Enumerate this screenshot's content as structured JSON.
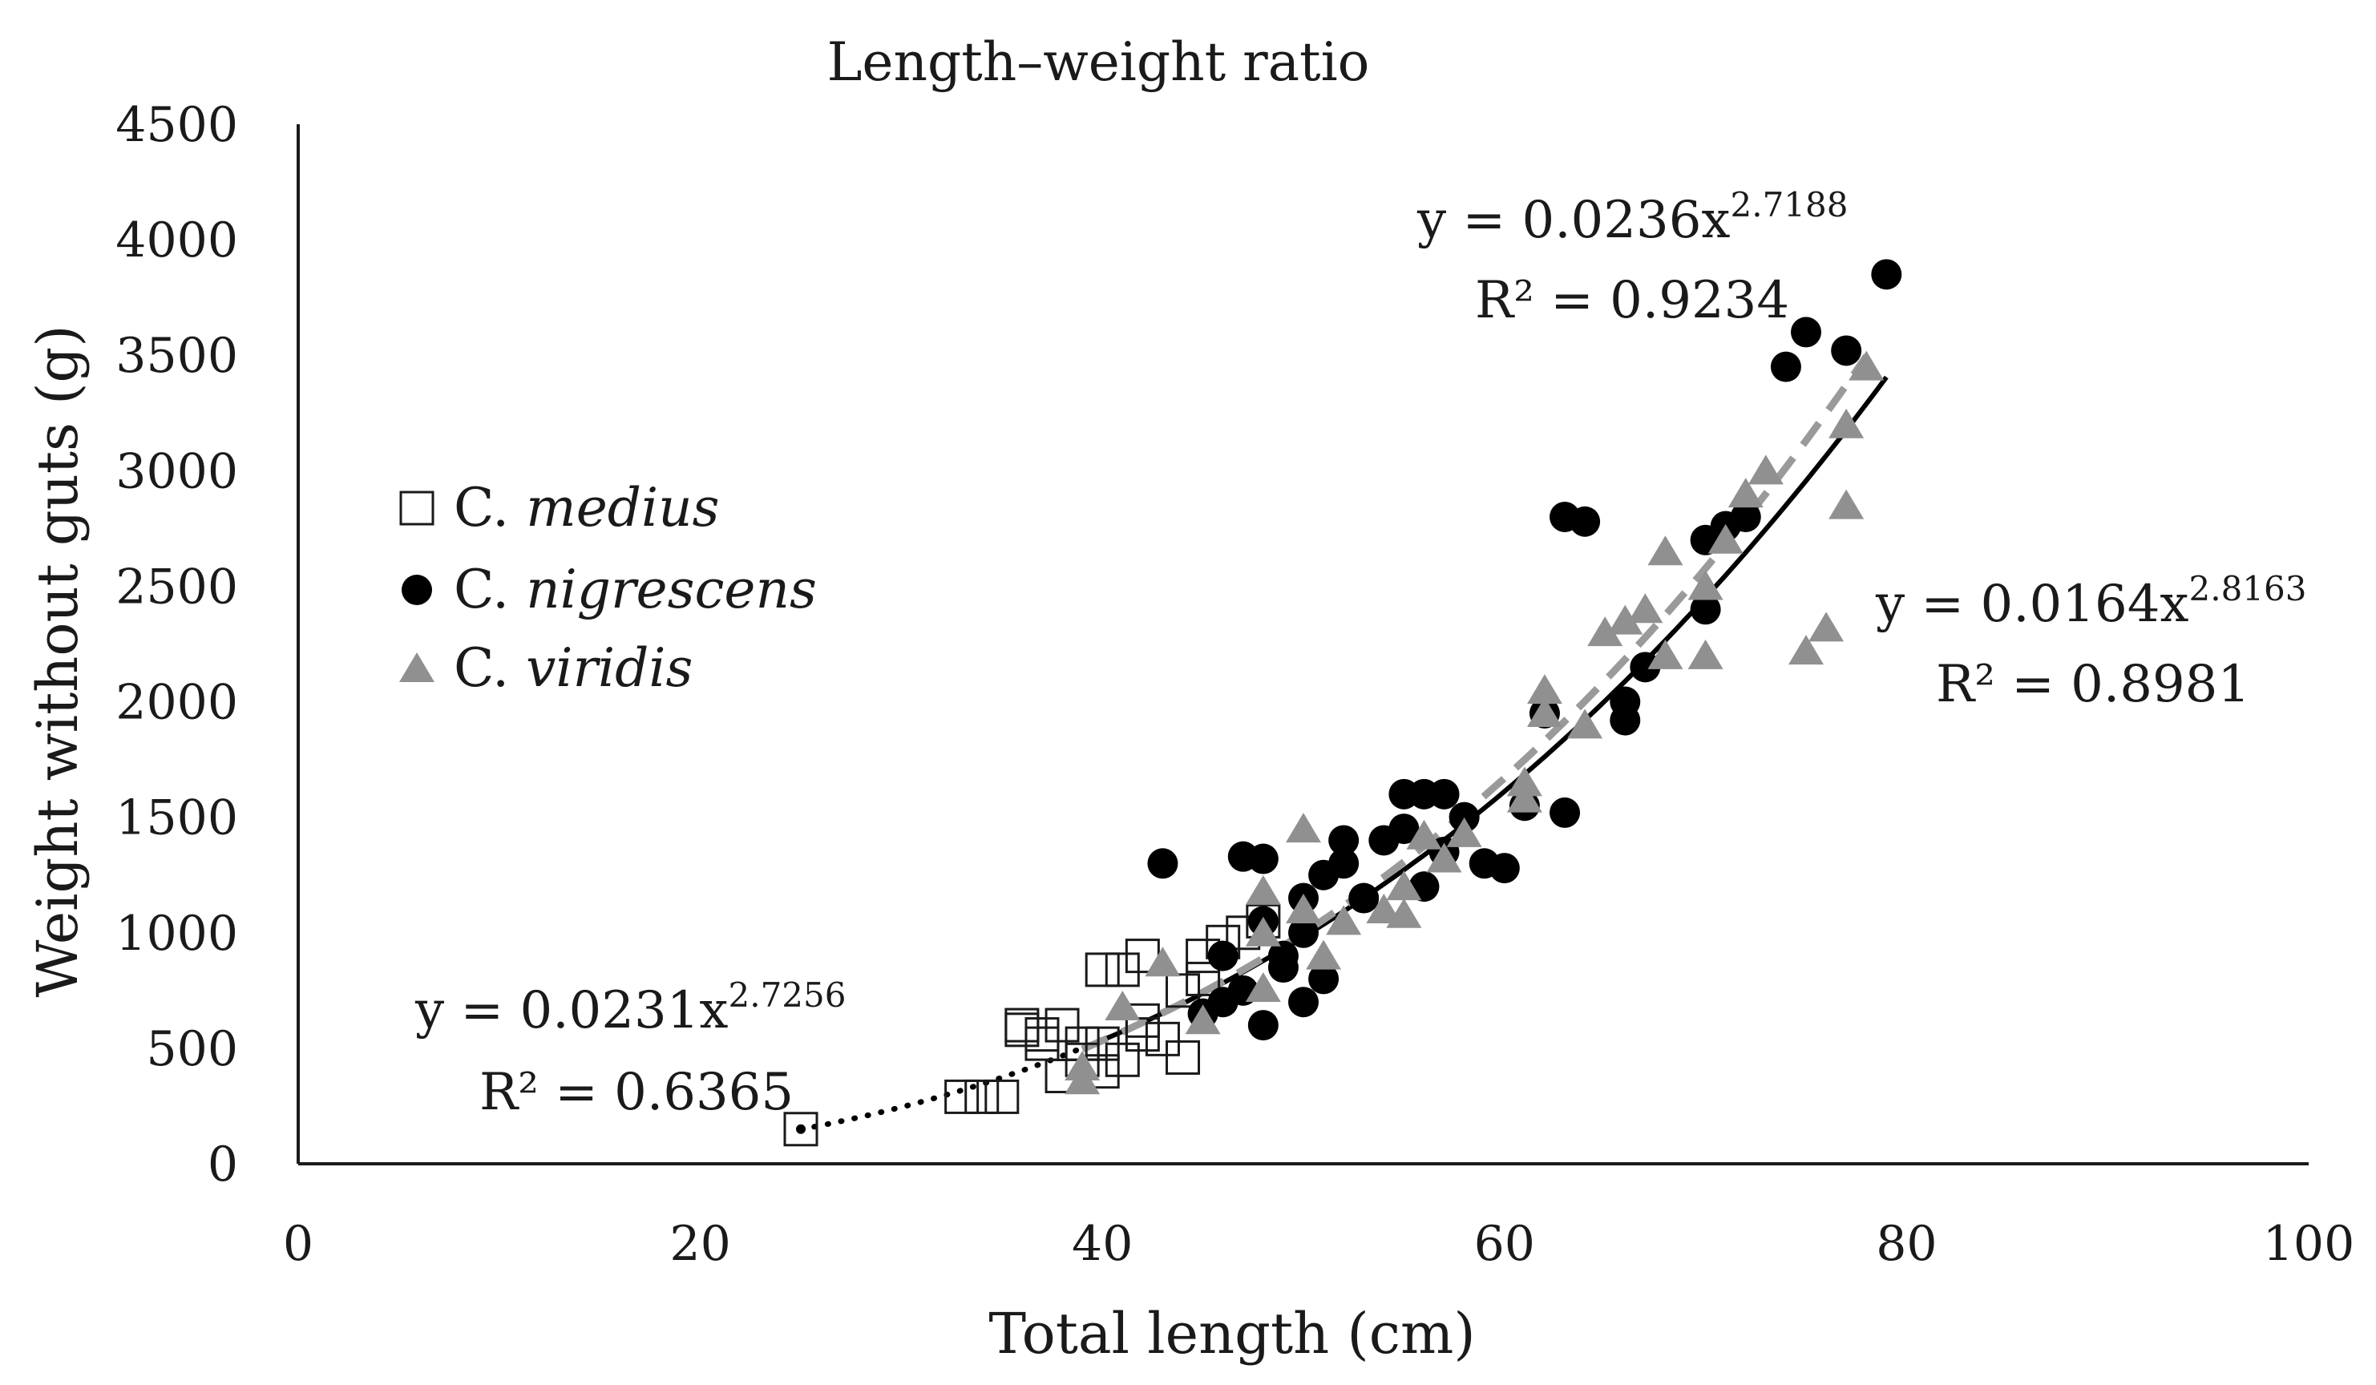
{
  "chart_data": {
    "type": "scatter",
    "title": "Length–weight ratio",
    "xlabel": "Total length (cm)",
    "ylabel": "Weight without guts (g)",
    "xlim": [
      0,
      100
    ],
    "ylim": [
      0,
      4500
    ],
    "x_ticks": [
      "0",
      "20",
      "40",
      "60",
      "80",
      "100"
    ],
    "y_ticks": [
      "0",
      "500",
      "1000",
      "1500",
      "2000",
      "2500",
      "3000",
      "3500",
      "4000",
      "4500"
    ],
    "grid": false,
    "legend_position": "left-middle",
    "series": [
      {
        "name": "C. medius",
        "genus": "C.",
        "epithet": "medius",
        "marker": "open-square",
        "color": "#1a1a1a",
        "trendline_style": "dotted",
        "trendline_range": [
          25,
          40
        ],
        "equation": {
          "a": 0.0231,
          "b": 2.7256,
          "prefix": "y = 0.0231x",
          "exponent": "2.7256",
          "r2": "R² = 0.6365"
        },
        "points": [
          [
            25,
            150
          ],
          [
            33,
            290
          ],
          [
            34,
            290
          ],
          [
            35,
            290
          ],
          [
            36,
            600
          ],
          [
            37,
            560
          ],
          [
            37,
            520
          ],
          [
            38,
            380
          ],
          [
            39,
            450
          ],
          [
            39,
            520
          ],
          [
            40,
            400
          ],
          [
            40,
            520
          ],
          [
            40,
            840
          ],
          [
            41,
            840
          ],
          [
            41,
            450
          ],
          [
            42,
            900
          ],
          [
            42,
            560
          ],
          [
            43,
            540
          ],
          [
            44,
            460
          ],
          [
            44,
            750
          ],
          [
            45,
            900
          ],
          [
            45,
            800
          ],
          [
            46,
            960
          ],
          [
            47,
            1000
          ],
          [
            48,
            1050
          ],
          [
            36,
            580
          ],
          [
            38,
            600
          ],
          [
            42,
            620
          ]
        ]
      },
      {
        "name": "C. nigrescens",
        "genus": "C.",
        "epithet": "nigrescens",
        "marker": "filled-circle",
        "color": "#000000",
        "trendline_style": "solid",
        "trendline_range": [
          39,
          79
        ],
        "equation": {
          "a": 0.0236,
          "b": 2.7188,
          "prefix": "y = 0.0236x",
          "exponent": "2.7188",
          "r2": "R² = 0.9234"
        },
        "points": [
          [
            43,
            1300
          ],
          [
            45,
            650
          ],
          [
            46,
            700
          ],
          [
            46,
            900
          ],
          [
            47,
            1330
          ],
          [
            47,
            750
          ],
          [
            48,
            1320
          ],
          [
            48,
            600
          ],
          [
            48,
            1050
          ],
          [
            49,
            900
          ],
          [
            49,
            850
          ],
          [
            50,
            1150
          ],
          [
            50,
            1000
          ],
          [
            50,
            700
          ],
          [
            51,
            1250
          ],
          [
            51,
            800
          ],
          [
            52,
            1400
          ],
          [
            52,
            1300
          ],
          [
            53,
            1150
          ],
          [
            54,
            1400
          ],
          [
            55,
            1450
          ],
          [
            55,
            1600
          ],
          [
            56,
            1600
          ],
          [
            56,
            1200
          ],
          [
            57,
            1600
          ],
          [
            57,
            1350
          ],
          [
            58,
            1500
          ],
          [
            59,
            1300
          ],
          [
            60,
            1280
          ],
          [
            61,
            1550
          ],
          [
            62,
            1950
          ],
          [
            63,
            2800
          ],
          [
            63,
            1520
          ],
          [
            64,
            2780
          ],
          [
            66,
            1920
          ],
          [
            66,
            2000
          ],
          [
            67,
            2150
          ],
          [
            70,
            2700
          ],
          [
            70,
            2400
          ],
          [
            71,
            2760
          ],
          [
            72,
            2800
          ],
          [
            74,
            3450
          ],
          [
            75,
            3600
          ],
          [
            77,
            3520
          ],
          [
            79,
            3850
          ]
        ]
      },
      {
        "name": "C. viridis",
        "genus": "C.",
        "epithet": "viridis",
        "marker": "filled-triangle",
        "color": "#909090",
        "trendline_style": "dashed",
        "trendline_range": [
          39,
          78
        ],
        "equation": {
          "a": 0.0164,
          "b": 2.8163,
          "prefix": "y = 0.0164x",
          "exponent": "2.8163",
          "r2": "R² = 0.8981"
        },
        "points": [
          [
            39,
            360
          ],
          [
            39,
            420
          ],
          [
            41,
            680
          ],
          [
            43,
            870
          ],
          [
            45,
            620
          ],
          [
            48,
            1180
          ],
          [
            48,
            1000
          ],
          [
            48,
            760
          ],
          [
            50,
            1450
          ],
          [
            50,
            1100
          ],
          [
            51,
            900
          ],
          [
            52,
            1050
          ],
          [
            54,
            1100
          ],
          [
            55,
            1080
          ],
          [
            55,
            1200
          ],
          [
            56,
            1420
          ],
          [
            57,
            1320
          ],
          [
            58,
            1430
          ],
          [
            61,
            1650
          ],
          [
            61,
            1580
          ],
          [
            62,
            2050
          ],
          [
            62,
            1950
          ],
          [
            64,
            1900
          ],
          [
            65,
            2300
          ],
          [
            66,
            2350
          ],
          [
            67,
            2400
          ],
          [
            68,
            2200
          ],
          [
            68,
            2650
          ],
          [
            70,
            2200
          ],
          [
            70,
            2500
          ],
          [
            71,
            2700
          ],
          [
            72,
            2900
          ],
          [
            73,
            3000
          ],
          [
            75,
            2220
          ],
          [
            76,
            2320
          ],
          [
            77,
            2850
          ],
          [
            77,
            3200
          ],
          [
            78,
            3450
          ]
        ]
      }
    ]
  }
}
